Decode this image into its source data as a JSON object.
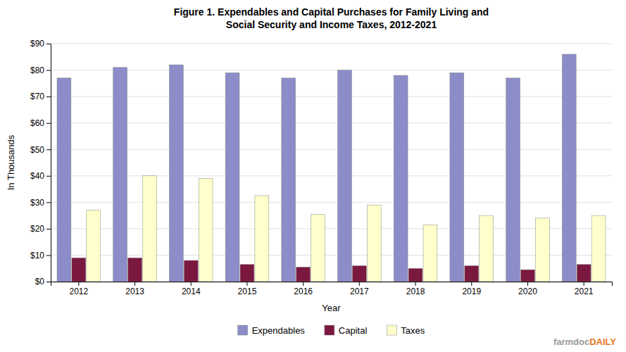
{
  "chart_data": {
    "type": "bar",
    "title": "Figure 1. Expendables and Capital Purchases for Family Living and",
    "subtitle": "Social Security and Income Taxes, 2012-2021",
    "x_label": "Year",
    "y_label": "In Thousands",
    "categories": [
      "2012",
      "2013",
      "2014",
      "2015",
      "2016",
      "2017",
      "2018",
      "2019",
      "2020",
      "2021"
    ],
    "series": [
      {
        "name": "Expendables",
        "color": "#8B8CC8",
        "values": [
          77,
          81,
          82,
          79,
          77,
          80,
          78,
          79,
          77,
          86
        ]
      },
      {
        "name": "Capital",
        "color": "#7B1840",
        "values": [
          9,
          9,
          8,
          6.5,
          5.5,
          6,
          5,
          6,
          4.5,
          6.5
        ]
      },
      {
        "name": "Taxes",
        "color": "#FFFFCC",
        "values": [
          27,
          40,
          39,
          32.5,
          25.5,
          29,
          21.5,
          25,
          24,
          25
        ]
      }
    ],
    "ylim": [
      0,
      90
    ],
    "yticks": [
      {
        "value": 0,
        "label": "$0"
      },
      {
        "value": 10,
        "label": "$10"
      },
      {
        "value": 20,
        "label": "$20"
      },
      {
        "value": 30,
        "label": "$30"
      },
      {
        "value": 40,
        "label": "$40"
      },
      {
        "value": 50,
        "label": "$50"
      },
      {
        "value": 60,
        "label": "$60"
      },
      {
        "value": 70,
        "label": "$70"
      },
      {
        "value": 80,
        "label": "$80"
      },
      {
        "value": 90,
        "label": "$90"
      }
    ],
    "grid": true,
    "legend": "bottom",
    "annotations": [
      {
        "text": "farmdoc",
        "color": "#999999"
      },
      {
        "text": "DAILY",
        "color": "#E87722"
      }
    ]
  }
}
